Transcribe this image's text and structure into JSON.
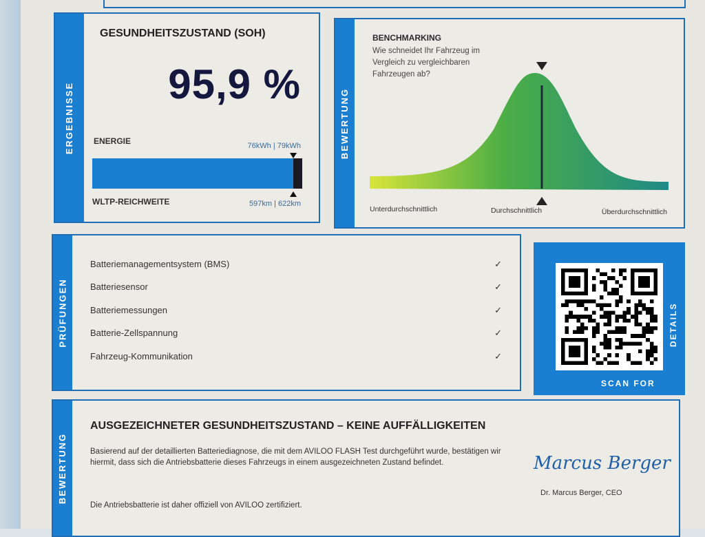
{
  "results": {
    "tab_label": "ERGEBNISSE",
    "title": "GESUNDHEITSZUSTAND (SOH)",
    "soh_value": "95,9 %",
    "energy_label": "ENERGIE",
    "energy_value": "76kWh | 79kWh",
    "range_label": "WLTP-REICHWEITE",
    "range_value": "597km | 622km",
    "bar_fill_percent": 95.9,
    "accent_color": "#1a7fd0"
  },
  "benchmark": {
    "tab_label": "BEWERTUNG",
    "title": "BENCHMARKING",
    "question": "Wie schneidet Ihr Fahrzeug im Vergleich zu vergleichbaren Fahrzeugen ab?",
    "scale_labels": [
      "Unterdurchschnittlich",
      "Durchschnittlich",
      "Überdurchschnittlich"
    ],
    "marker_position": "Durchschnittlich"
  },
  "checks": {
    "tab_label": "PRÜFUNGEN",
    "items": [
      {
        "label": "Batteriemanagementsystem (BMS)",
        "status": "✓"
      },
      {
        "label": "Batteriesensor",
        "status": "✓"
      },
      {
        "label": "Batteriemessungen",
        "status": "✓"
      },
      {
        "label": "Batterie-Zellspannung",
        "status": "✓"
      },
      {
        "label": "Fahrzeug-Kommunikation",
        "status": "✓"
      }
    ]
  },
  "qr": {
    "caption": "SCAN FOR DETAILS",
    "icon": "qr-code-icon"
  },
  "verdict": {
    "tab_label": "BEWERTUNG",
    "headline": "AUSGEZEICHNETER GESUNDHEITSZUSTAND – KEINE AUFFÄLLIGKEITEN",
    "body_1": "Basierend auf der detaillierten Batteriediagnose, die mit dem AVILOO FLASH Test durchgeführt wurde, bestätigen wir hiermit, dass sich die Antriebsbatterie dieses Fahrzeugs in einem ausgezeichneten Zustand befindet.",
    "body_2": "Die Antriebsbatterie ist daher offiziell von AVILOO zertifiziert.",
    "signature": "Marcus Berger",
    "signer": "Dr. Marcus Berger, CEO"
  }
}
